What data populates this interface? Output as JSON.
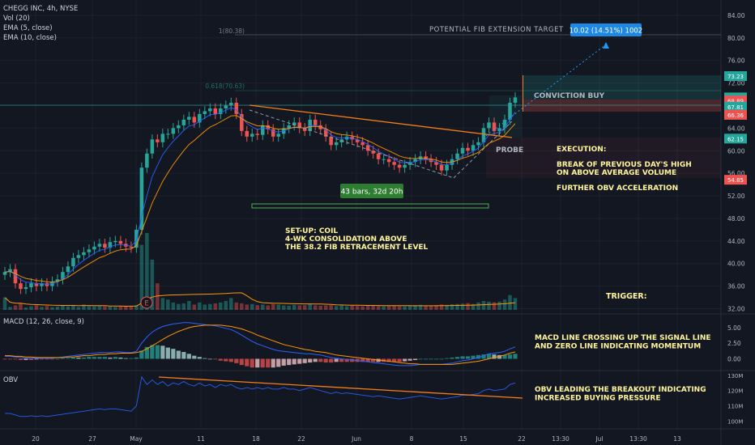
{
  "header": {
    "symbol": "CHEGG INC, 4h, NYSE",
    "vol": "Vol (20)",
    "ema5": "EMA (5, close)",
    "ema10": "EMA (10, close)"
  },
  "panes": {
    "macd_label": "MACD (12, 26, close, 9)",
    "obv_label": "OBV"
  },
  "annotations": {
    "potential_target": "POTENTIAL FIB EXTENSION TARGET",
    "target_box": "10.02 (14.51%) 1002",
    "fib_1": "1(80.38)",
    "fib_0618": "0.618(70.63)",
    "conviction": "CONVICTION BUY",
    "probe": "PROBE",
    "bars_box": "43 bars, 32d 20h",
    "e_marker": "E",
    "setup_lines": [
      "SET-UP: COIL",
      "4-WK CONSOLIDATION ABOVE",
      "THE 38.2 FIB RETRACEMENT LEVEL"
    ],
    "execution_lines": [
      "EXECUTION:",
      "",
      "BREAK OF PREVIOUS DAY'S HIGH",
      "ON ABOVE AVERAGE VOLUME",
      "",
      "FURTHER OBV ACCELERATION"
    ],
    "trigger": "TRIGGER:",
    "macd_note": [
      "MACD LINE CROSSING UP THE SIGNAL LINE",
      "AND ZERO LINE INDICATING MOMENTUM"
    ],
    "obv_note": [
      "OBV LEADING THE BREAKOUT INDICATING",
      "INCREASED BUYING PRESSURE"
    ]
  },
  "colors": {
    "background": "#131722",
    "up": "#26a69a",
    "down": "#ef5350",
    "ema5": "#2962ff",
    "ema10": "#ff9800",
    "trendline": "#f57f17",
    "text_yellow": "#fff59d",
    "grid": "#1e222d",
    "axis_text": "#b2b5be"
  },
  "chart_data": [
    {
      "type": "candlestick",
      "title": "CHEGG INC, 4h, NYSE",
      "x_ticks": [
        "20",
        "27",
        "May",
        "11",
        "18",
        "22",
        "Jun",
        "8",
        "15",
        "22",
        "13:30",
        "Jul",
        "13:30",
        "13"
      ],
      "y_ticks": [
        "84.00",
        "80.00",
        "76.00",
        "72.00",
        "68.00",
        "64.00",
        "60.00",
        "56.00",
        "52.00",
        "48.00",
        "44.00",
        "40.00",
        "36.00",
        "32.00"
      ],
      "ylim": [
        31.5,
        86
      ],
      "price_labels": [
        "73.23",
        "69.45",
        "68.89",
        "67.81",
        "66.36",
        "62.15",
        "54.85"
      ],
      "close": [
        38.5,
        39.0,
        36.5,
        35.5,
        35.8,
        36.5,
        36.0,
        36.5,
        36.0,
        36.8,
        37.2,
        38.5,
        39.5,
        41.0,
        41.5,
        42.0,
        42.5,
        43.0,
        43.5,
        42.8,
        43.8,
        44.0,
        43.5,
        43.0,
        42.8,
        46.0,
        57.0,
        59.5,
        62.0,
        61.5,
        63.0,
        63.0,
        64.0,
        64.5,
        65.5,
        66.0,
        65.0,
        66.5,
        67.0,
        67.5,
        66.5,
        67.5,
        68.0,
        68.5,
        66.5,
        63.5,
        62.5,
        63.0,
        62.8,
        64.5,
        63.8,
        62.5,
        63.0,
        64.0,
        64.5,
        65.0,
        64.0,
        63.5,
        65.5,
        64.5,
        63.8,
        62.5,
        61.0,
        61.5,
        62.0,
        62.5,
        62.0,
        61.5,
        61.0,
        60.0,
        59.5,
        58.5,
        58.5,
        58.0,
        57.5,
        57.0,
        57.5,
        58.0,
        58.5,
        59.0,
        58.5,
        58.0,
        57.5,
        56.5,
        57.5,
        58.5,
        59.5,
        60.5,
        60.0,
        61.0,
        61.5,
        64.0,
        65.0,
        63.5,
        64.0,
        65.5,
        68.5,
        69.45
      ],
      "volume": [
        4.2,
        1.0,
        1.5,
        2.3,
        0.8,
        1.2,
        1.5,
        1.0,
        1.3,
        0.9,
        1.1,
        1.4,
        1.2,
        1.5,
        1.0,
        1.8,
        1.3,
        1.2,
        1.5,
        1.2,
        1.1,
        1.0,
        1.2,
        1.4,
        1.3,
        1.6,
        22.0,
        26.0,
        17.0,
        9.0,
        4.0,
        3.5,
        2.5,
        2.0,
        2.2,
        3.0,
        1.8,
        2.5,
        1.8,
        2.0,
        2.2,
        2.5,
        3.0,
        4.0,
        2.5,
        2.2,
        1.8,
        2.0,
        1.6,
        1.8,
        1.5,
        2.0,
        1.8,
        1.5,
        1.4,
        1.7,
        1.5,
        1.6,
        2.0,
        1.5,
        1.4,
        1.5,
        1.6,
        1.3,
        1.5,
        1.2,
        1.4,
        1.3,
        1.2,
        1.4,
        1.5,
        1.3,
        1.2,
        1.4,
        1.5,
        1.3,
        1.2,
        1.5,
        1.6,
        1.7,
        1.4,
        1.5,
        1.6,
        1.8,
        1.7,
        1.9,
        2.0,
        2.1,
        2.3,
        2.0,
        2.5,
        3.0,
        2.8,
        2.6,
        2.8,
        3.5,
        5.0,
        4.0
      ]
    },
    {
      "type": "line",
      "title": "MACD (12, 26, close, 9)",
      "y_ticks": [
        "5.00",
        "2.50",
        "0.00"
      ],
      "ylim": [
        -1.5,
        6.3
      ],
      "series": [
        {
          "name": "",
          "values": [
            0.4,
            0.4,
            0.3,
            0.2,
            0.1,
            0.1,
            0.1,
            0.1,
            0.1,
            0.1,
            0.2,
            0.3,
            0.4,
            0.5,
            0.6,
            0.7,
            0.8,
            0.9,
            1.0,
            1.0,
            1.0,
            1.1,
            1.1,
            1.0,
            1.0,
            1.2,
            2.5,
            3.5,
            4.3,
            4.8,
            5.2,
            5.4,
            5.6,
            5.7,
            5.8,
            5.8,
            5.7,
            5.6,
            5.5,
            5.4,
            5.3,
            5.1,
            4.9,
            4.7,
            4.3,
            3.8,
            3.3,
            2.8,
            2.4,
            2.1,
            1.8,
            1.5,
            1.3,
            1.2,
            1.1,
            1.0,
            0.9,
            0.8,
            0.8,
            0.7,
            0.6,
            0.4,
            0.2,
            0.1,
            0.0,
            -0.1,
            -0.2,
            -0.3,
            -0.4,
            -0.5,
            -0.6,
            -0.7,
            -0.8,
            -0.9,
            -1.0,
            -1.1,
            -1.1,
            -1.1,
            -1.0,
            -0.9,
            -0.9,
            -0.9,
            -0.9,
            -0.9,
            -0.8,
            -0.7,
            -0.5,
            -0.3,
            -0.2,
            0.0,
            0.2,
            0.5,
            0.8,
            0.9,
            1.0,
            1.2,
            1.6,
            1.9
          ]
        },
        {
          "name": "",
          "values": [
            0.5,
            0.5,
            0.4,
            0.4,
            0.3,
            0.3,
            0.2,
            0.2,
            0.2,
            0.2,
            0.2,
            0.2,
            0.3,
            0.3,
            0.4,
            0.5,
            0.5,
            0.6,
            0.7,
            0.7,
            0.8,
            0.8,
            0.9,
            0.9,
            0.9,
            1.0,
            1.2,
            1.6,
            2.1,
            2.6,
            3.1,
            3.6,
            4.0,
            4.4,
            4.7,
            5.0,
            5.2,
            5.3,
            5.4,
            5.4,
            5.4,
            5.4,
            5.3,
            5.2,
            5.0,
            4.8,
            4.5,
            4.2,
            3.8,
            3.5,
            3.2,
            2.9,
            2.6,
            2.3,
            2.1,
            1.9,
            1.7,
            1.5,
            1.4,
            1.2,
            1.1,
            1.0,
            0.8,
            0.6,
            0.5,
            0.4,
            0.3,
            0.2,
            0.1,
            0.0,
            -0.1,
            -0.2,
            -0.3,
            -0.4,
            -0.5,
            -0.6,
            -0.7,
            -0.8,
            -0.8,
            -0.9,
            -0.9,
            -0.9,
            -0.9,
            -0.9,
            -0.9,
            -0.9,
            -0.8,
            -0.7,
            -0.6,
            -0.5,
            -0.4,
            -0.2,
            0.0,
            0.2,
            0.4,
            0.6,
            0.9,
            1.1
          ]
        }
      ]
    },
    {
      "type": "line",
      "title": "OBV",
      "y_ticks": [
        "130M",
        "120M",
        "110M",
        "100M"
      ],
      "ylim": [
        96,
        131
      ],
      "series": [
        {
          "name": "",
          "values": [
            105,
            105,
            104,
            103,
            103,
            103.5,
            103,
            103.5,
            103,
            103.5,
            104,
            104.5,
            105,
            105.5,
            106,
            106.5,
            107,
            107.5,
            108,
            107.5,
            108,
            108,
            107.5,
            107,
            106.5,
            110,
            129,
            124,
            127,
            124,
            126,
            123,
            125,
            124,
            126,
            124,
            123,
            125,
            123,
            124,
            122,
            124,
            123,
            124,
            122,
            121,
            122,
            121,
            122,
            121,
            122,
            121,
            121,
            122,
            121,
            121,
            120,
            121,
            122,
            121,
            120,
            119,
            118,
            119,
            118,
            118.5,
            118,
            117.5,
            117,
            116.5,
            116,
            116.5,
            116,
            115.5,
            115,
            114.5,
            115,
            115.5,
            116,
            116.5,
            116,
            115.5,
            115,
            114.5,
            115,
            115.5,
            116,
            117,
            117,
            117.5,
            118,
            120,
            121,
            120,
            120.5,
            121,
            124,
            125
          ]
        }
      ]
    }
  ]
}
